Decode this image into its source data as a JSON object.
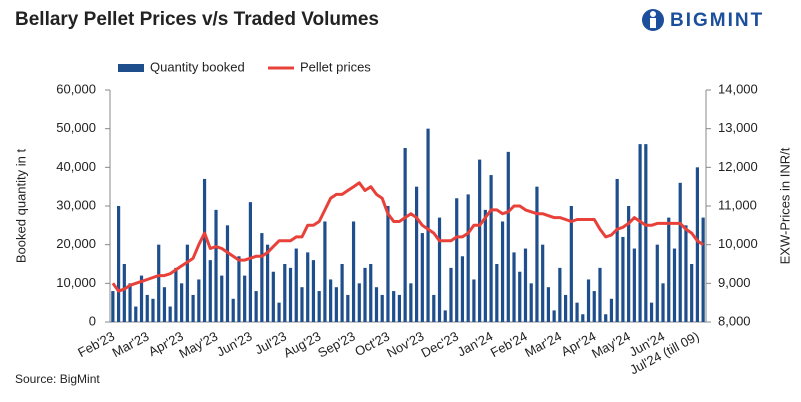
{
  "chart_data": {
    "type": "bar_line",
    "title": "Bellary Pellet Prices v/s Traded Volumes",
    "brand": "BIGMINT",
    "source": "Source: BigMint",
    "y_label": "Booked quantity in t",
    "y2_label": "EXW-Prices in INR/t",
    "categories": [
      "Feb'23",
      null,
      null,
      null,
      null,
      null,
      "Mar'23",
      null,
      null,
      null,
      null,
      null,
      "Apr'23",
      null,
      null,
      null,
      null,
      null,
      "May'23",
      null,
      null,
      null,
      null,
      null,
      "Jun'23",
      null,
      null,
      null,
      null,
      null,
      "Jul'23",
      null,
      null,
      null,
      null,
      null,
      "Aug'23",
      null,
      null,
      null,
      null,
      null,
      "Sep'23",
      null,
      null,
      null,
      null,
      null,
      "Oct'23",
      null,
      null,
      null,
      null,
      null,
      "Nov'23",
      null,
      null,
      null,
      null,
      null,
      "Dec'23",
      null,
      null,
      null,
      null,
      null,
      "Jan'24",
      null,
      null,
      null,
      null,
      null,
      "Feb'24",
      null,
      null,
      null,
      null,
      null,
      "Mar'24",
      null,
      null,
      null,
      null,
      null,
      "Apr'24",
      null,
      null,
      null,
      null,
      null,
      "May'24",
      null,
      null,
      null,
      null,
      null,
      "Jun'24",
      null,
      null,
      null,
      null,
      null,
      "Jul'24 (till 09)",
      null
    ],
    "series": [
      {
        "name": "Quantity booked",
        "color": "#1f4e8c",
        "values": [
          8000,
          30000,
          15000,
          10000,
          4000,
          12000,
          7000,
          6000,
          20000,
          9000,
          4000,
          14000,
          10000,
          20000,
          7000,
          11000,
          37000,
          16000,
          29000,
          12000,
          25000,
          6000,
          17000,
          12000,
          31000,
          8000,
          23000,
          20000,
          13000,
          5000,
          15000,
          14000,
          19000,
          9000,
          18000,
          16000,
          8000,
          26000,
          11000,
          9000,
          15000,
          7000,
          26000,
          10000,
          14000,
          15000,
          9000,
          7000,
          30000,
          8000,
          7000,
          45000,
          10000,
          35000,
          23000,
          50000,
          7000,
          27000,
          3000,
          14000,
          32000,
          17000,
          33000,
          11000,
          42000,
          29000,
          38000,
          15000,
          26000,
          44000,
          18000,
          13000,
          19000,
          10000,
          35000,
          20000,
          9000,
          3000,
          14000,
          7000,
          30000,
          5000,
          2000,
          11000,
          8000,
          14000,
          2000,
          6000,
          37000,
          22000,
          30000,
          19000,
          46000,
          46000,
          5000,
          20000,
          10000,
          27000,
          19000,
          36000,
          25000,
          15000,
          40000,
          27000
        ]
      },
      {
        "name": "Pellet prices",
        "color": "#e8413a",
        "axis": "y2",
        "values": [
          9000,
          8800,
          8850,
          8950,
          9000,
          9050,
          9100,
          9150,
          9200,
          9200,
          9250,
          9350,
          9450,
          9550,
          9650,
          10000,
          10300,
          9900,
          9950,
          9900,
          9800,
          9700,
          9600,
          9600,
          9650,
          9700,
          9700,
          9800,
          9950,
          10100,
          10100,
          10100,
          10200,
          10200,
          10500,
          10500,
          10600,
          10900,
          11200,
          11300,
          11300,
          11400,
          11500,
          11600,
          11400,
          11500,
          11300,
          11200,
          10800,
          10600,
          10600,
          10700,
          10800,
          10700,
          10500,
          10400,
          10300,
          10100,
          10100,
          10100,
          10200,
          10200,
          10300,
          10500,
          10500,
          10700,
          10900,
          10900,
          10800,
          10850,
          11000,
          11000,
          10900,
          10850,
          10800,
          10800,
          10750,
          10700,
          10700,
          10650,
          10600,
          10650,
          10650,
          10650,
          10650,
          10400,
          10200,
          10250,
          10400,
          10450,
          10550,
          10700,
          10600,
          10500,
          10500,
          10550,
          10550,
          10550,
          10550,
          10550,
          10400,
          10300,
          10100,
          10000
        ]
      }
    ],
    "ylim": [
      0,
      60000
    ],
    "yticks": [
      0,
      {
        "value": 10000,
        "label": "10,000"
      },
      {
        "value": 20000,
        "label": "20,000"
      },
      {
        "value": 30000,
        "label": "30,000"
      },
      {
        "value": 40000,
        "label": "40,000"
      },
      {
        "value": 50000,
        "label": "50,000"
      },
      {
        "value": 60000,
        "label": "60,000"
      }
    ],
    "y2lim": [
      8000,
      14000
    ],
    "y2ticks": [
      {
        "value": 8000,
        "label": "8,000"
      },
      {
        "value": 9000,
        "label": "9,000"
      },
      {
        "value": 10000,
        "label": "10,000"
      },
      {
        "value": 11000,
        "label": "11,000"
      },
      {
        "value": 12000,
        "label": "12,000"
      },
      {
        "value": 13000,
        "label": "13,000"
      },
      {
        "value": 14000,
        "label": "14,000"
      }
    ],
    "legend": "top-left"
  }
}
